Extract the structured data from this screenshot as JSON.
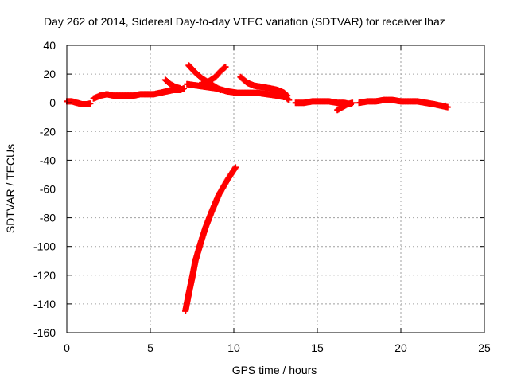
{
  "chart_data": {
    "type": "scatter",
    "title": "Day 262 of 2014, Sidereal Day-to-day VTEC variation (SDTVAR) for receiver lhaz",
    "xlabel": "GPS time / hours",
    "ylabel": "SDTVAR / TECUs",
    "xlim": [
      0,
      25
    ],
    "ylim": [
      -160,
      40
    ],
    "xticks": [
      0,
      5,
      10,
      15,
      20,
      25
    ],
    "yticks": [
      -160,
      -140,
      -120,
      -100,
      -80,
      -60,
      -40,
      -20,
      0,
      20,
      40
    ],
    "grid": true,
    "marker": "plus",
    "color": "#ff0000",
    "series": [
      {
        "points": [
          [
            0,
            1
          ],
          [
            0.3,
            1
          ],
          [
            0.6,
            0
          ],
          [
            0.9,
            -1
          ],
          [
            1.2,
            -1
          ],
          [
            1.4,
            -0.5
          ]
        ]
      },
      {
        "points": [
          [
            1.6,
            3
          ],
          [
            2.0,
            5
          ],
          [
            2.4,
            6
          ],
          [
            2.8,
            5
          ],
          [
            3.2,
            5
          ],
          [
            3.6,
            5
          ],
          [
            4.0,
            5
          ],
          [
            4.4,
            6
          ],
          [
            4.8,
            6
          ],
          [
            5.2,
            6
          ],
          [
            5.6,
            7
          ],
          [
            6.0,
            8
          ],
          [
            6.4,
            9
          ],
          [
            6.8,
            9
          ],
          [
            7.0,
            10
          ]
        ]
      },
      {
        "points": [
          [
            5.9,
            16
          ],
          [
            6.2,
            13
          ],
          [
            6.5,
            11
          ],
          [
            6.8,
            10
          ]
        ]
      },
      {
        "points": [
          [
            7.2,
            13
          ],
          [
            7.8,
            12
          ],
          [
            8.4,
            11
          ],
          [
            9.0,
            10
          ],
          [
            9.6,
            8
          ],
          [
            10.2,
            7
          ],
          [
            10.8,
            7
          ],
          [
            11.4,
            7
          ],
          [
            12.0,
            6
          ],
          [
            12.6,
            5
          ],
          [
            13.0,
            4
          ]
        ]
      },
      {
        "points": [
          [
            7.3,
            26
          ],
          [
            7.7,
            21
          ],
          [
            8.1,
            17
          ],
          [
            8.5,
            14
          ],
          [
            8.9,
            11
          ],
          [
            9.2,
            9
          ]
        ]
      },
      {
        "points": [
          [
            8.1,
            14
          ],
          [
            8.5,
            15
          ],
          [
            8.9,
            18
          ],
          [
            9.2,
            22
          ],
          [
            9.5,
            25
          ]
        ]
      },
      {
        "points": [
          [
            10.4,
            18
          ],
          [
            10.8,
            14
          ],
          [
            11.2,
            12
          ],
          [
            11.7,
            11
          ],
          [
            12.2,
            10
          ],
          [
            12.6,
            9
          ],
          [
            13.0,
            7
          ],
          [
            13.2,
            5
          ]
        ]
      },
      {
        "points": [
          [
            12.4,
            8
          ],
          [
            12.8,
            6
          ],
          [
            13.1,
            4
          ],
          [
            13.3,
            2
          ]
        ]
      },
      {
        "points": [
          [
            13.7,
            0
          ],
          [
            14.2,
            0
          ],
          [
            14.7,
            1
          ],
          [
            15.2,
            1
          ],
          [
            15.7,
            1
          ],
          [
            16.2,
            0
          ],
          [
            16.6,
            0
          ],
          [
            17.0,
            -1
          ]
        ]
      },
      {
        "points": [
          [
            16.2,
            -5
          ],
          [
            16.5,
            -3
          ],
          [
            16.8,
            -1
          ],
          [
            17.1,
            0
          ]
        ]
      },
      {
        "points": [
          [
            17.5,
            0
          ],
          [
            18.0,
            1
          ],
          [
            18.5,
            1
          ],
          [
            19.0,
            2
          ],
          [
            19.5,
            2
          ],
          [
            20.0,
            1
          ],
          [
            20.5,
            1
          ],
          [
            21.0,
            1
          ],
          [
            21.5,
            0
          ],
          [
            22.0,
            -1
          ],
          [
            22.4,
            -2
          ],
          [
            22.8,
            -3
          ]
        ]
      },
      {
        "points": [
          [
            10.1,
            -45
          ],
          [
            9.6,
            -54
          ],
          [
            9.1,
            -64
          ],
          [
            8.7,
            -75
          ],
          [
            8.3,
            -87
          ],
          [
            8.0,
            -98
          ],
          [
            7.7,
            -110
          ],
          [
            7.5,
            -122
          ],
          [
            7.3,
            -133
          ],
          [
            7.1,
            -145
          ]
        ]
      }
    ]
  }
}
